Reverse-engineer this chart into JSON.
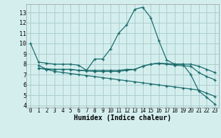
{
  "xlabel": "Humidex (Indice chaleur)",
  "bg_color": "#d4eeee",
  "grid_color": "#aacccc",
  "line_color": "#1a6b6b",
  "xlim": [
    -0.5,
    23.5
  ],
  "ylim": [
    3.8,
    13.8
  ],
  "yticks": [
    4,
    5,
    6,
    7,
    8,
    9,
    10,
    11,
    12,
    13
  ],
  "xticks": [
    0,
    1,
    2,
    3,
    4,
    5,
    6,
    7,
    8,
    9,
    10,
    11,
    12,
    13,
    14,
    15,
    16,
    17,
    18,
    19,
    20,
    21,
    22,
    23
  ],
  "xtick_labels": [
    "0",
    "1",
    "2",
    "3",
    "4",
    "5",
    "6",
    "7",
    "8",
    "9",
    "10",
    "11",
    "12",
    "13",
    "14",
    "15",
    "16",
    "17",
    "18",
    "19",
    "20",
    "21",
    "22",
    "23"
  ],
  "series": [
    {
      "x": [
        0,
        1,
        2,
        3,
        4,
        5,
        6,
        7,
        8,
        9,
        10,
        11,
        12,
        13,
        14,
        15,
        16,
        17,
        18,
        19,
        20,
        21,
        22,
        23
      ],
      "y": [
        10,
        8.2,
        8.1,
        8.0,
        8.0,
        8.0,
        7.9,
        7.4,
        8.5,
        8.5,
        9.5,
        11.0,
        11.8,
        13.3,
        13.5,
        12.5,
        10.3,
        8.4,
        8.0,
        8.0,
        7.0,
        5.4,
        4.8,
        4.15
      ]
    },
    {
      "x": [
        1,
        2,
        3,
        4,
        5,
        6,
        7,
        8,
        9,
        10,
        11,
        12,
        13,
        14,
        15,
        16,
        17,
        18,
        19,
        20,
        21,
        22,
        23
      ],
      "y": [
        7.6,
        7.5,
        7.5,
        7.5,
        7.5,
        7.4,
        7.4,
        7.4,
        7.4,
        7.4,
        7.4,
        7.5,
        7.5,
        7.8,
        8.0,
        8.1,
        8.05,
        8.0,
        8.0,
        8.0,
        7.8,
        7.5,
        7.2
      ]
    },
    {
      "x": [
        1,
        2,
        3,
        4,
        5,
        6,
        7,
        8,
        9,
        10,
        11,
        12,
        13,
        14,
        15,
        16,
        17,
        18,
        19,
        20,
        21,
        22,
        23
      ],
      "y": [
        7.6,
        7.55,
        7.5,
        7.5,
        7.5,
        7.4,
        7.35,
        7.3,
        7.3,
        7.3,
        7.3,
        7.4,
        7.5,
        7.8,
        8.0,
        8.1,
        8.0,
        7.9,
        7.85,
        7.8,
        7.2,
        6.8,
        6.5
      ]
    },
    {
      "x": [
        1,
        2,
        3,
        4,
        5,
        6,
        7,
        8,
        9,
        10,
        11,
        12,
        13,
        14,
        15,
        16,
        17,
        18,
        19,
        20,
        21,
        22,
        23
      ],
      "y": [
        7.9,
        7.5,
        7.3,
        7.2,
        7.1,
        7.0,
        6.9,
        6.8,
        6.7,
        6.6,
        6.5,
        6.4,
        6.3,
        6.2,
        6.1,
        6.0,
        5.9,
        5.8,
        5.7,
        5.6,
        5.5,
        5.2,
        4.9
      ]
    }
  ]
}
